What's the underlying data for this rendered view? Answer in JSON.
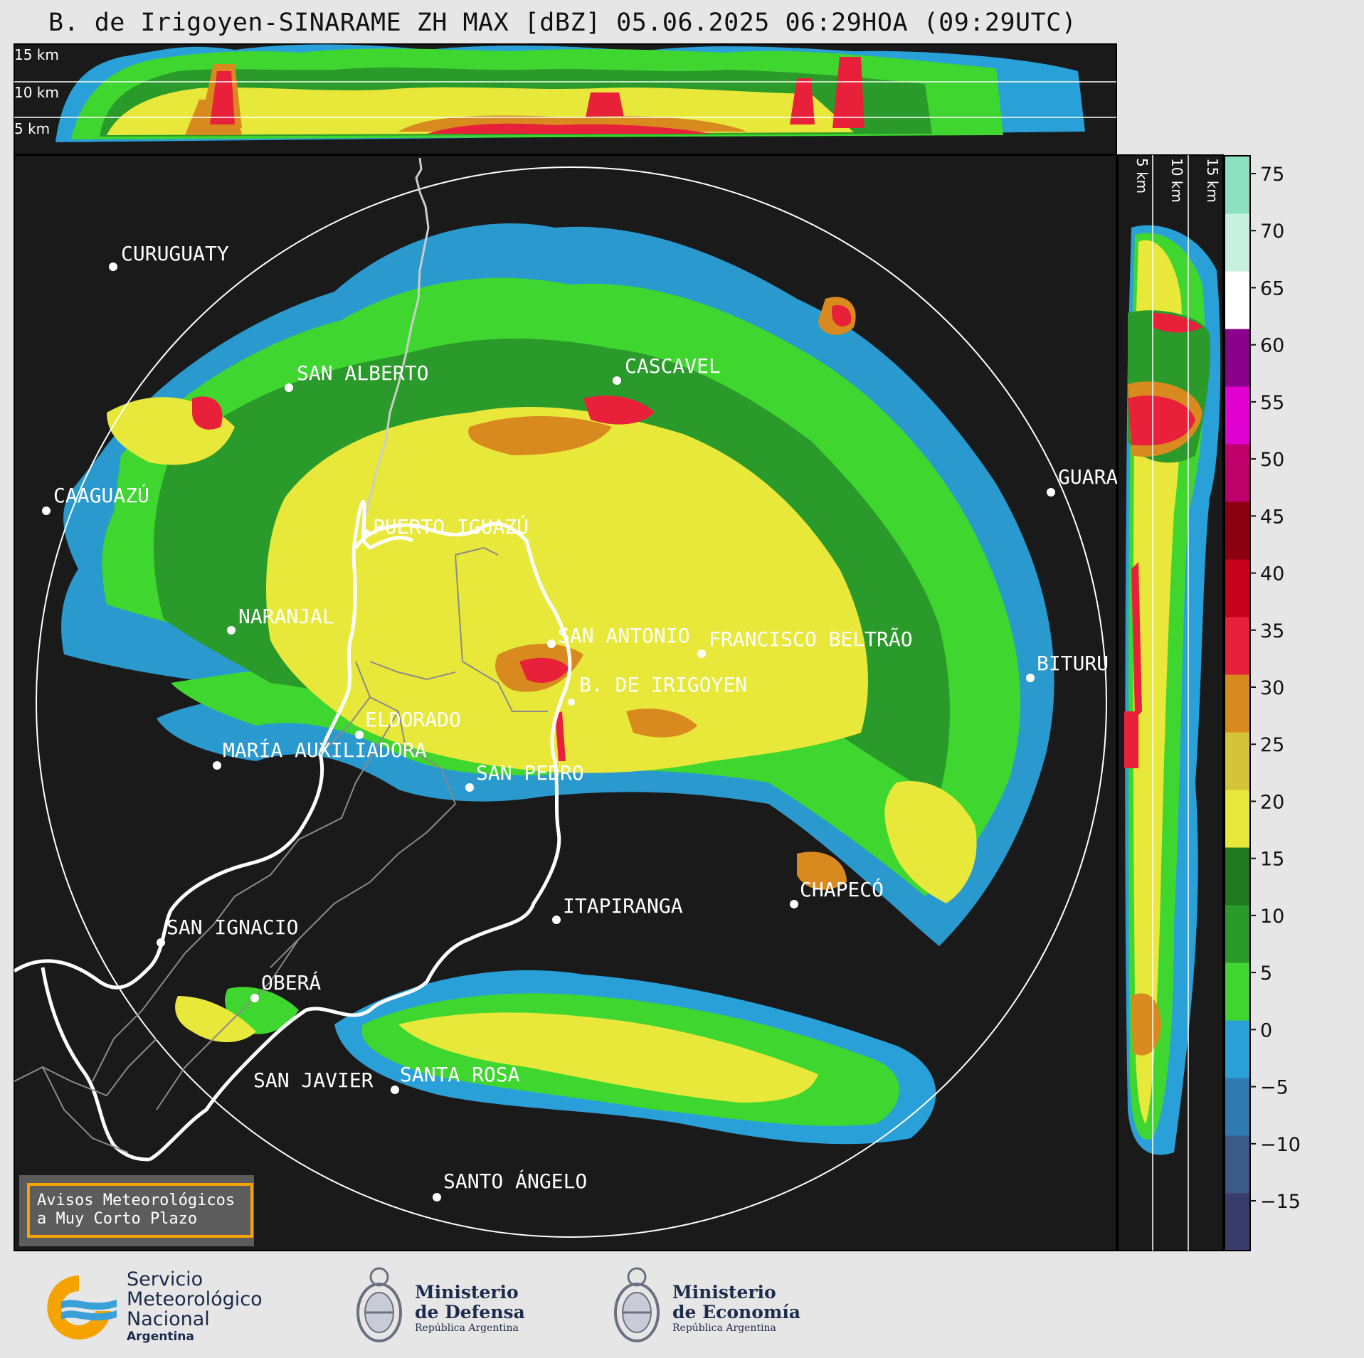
{
  "title": "B. de Irigoyen-SINARAME ZH MAX [dBZ] 05.06.2025 06:29HOA (09:29UTC)",
  "top_profile": {
    "altitude_labels": [
      "15 km",
      "10 km",
      "5 km"
    ]
  },
  "side_profile": {
    "altitude_labels": [
      "5 km",
      "10 km",
      "15 km"
    ]
  },
  "colorbar": {
    "unit": "dBZ",
    "ticks": [
      "75",
      "70",
      "65",
      "60",
      "55",
      "50",
      "45",
      "40",
      "35",
      "30",
      "25",
      "20",
      "15",
      "10",
      "5",
      "0",
      "−5",
      "−10",
      "−15"
    ]
  },
  "cities": [
    {
      "name": "CURUGUATY"
    },
    {
      "name": "SAN ALBERTO"
    },
    {
      "name": "CASCAVEL"
    },
    {
      "name": "CAAGUAZÚ"
    },
    {
      "name": "GUARA"
    },
    {
      "name": "PUERTO IGUAZÚ"
    },
    {
      "name": "NARANJAL"
    },
    {
      "name": "SAN ANTONIO"
    },
    {
      "name": "FRANCISCO BELTRÃO"
    },
    {
      "name": "B. DE IRIGOYEN"
    },
    {
      "name": "BITURU"
    },
    {
      "name": "ELDORADO"
    },
    {
      "name": "MARÍA AUXILIADORA"
    },
    {
      "name": "SAN PEDRO"
    },
    {
      "name": "CHAPECÓ"
    },
    {
      "name": "ITAPIRANGA"
    },
    {
      "name": "SAN IGNACIO"
    },
    {
      "name": "OBERÁ"
    },
    {
      "name": "SAN JAVIER"
    },
    {
      "name": "SANTA ROSA"
    },
    {
      "name": "SANTO ÁNGELO"
    }
  ],
  "notice": {
    "line1": "Avisos Meteorológicos",
    "line2": "a Muy Corto Plazo"
  },
  "logos": {
    "smn": {
      "line1": "Servicio",
      "line2": "Meteorológico",
      "line3": "Nacional",
      "line4": "Argentina"
    },
    "defensa": {
      "line1": "Ministerio",
      "line2": "de Defensa",
      "line3": "República Argentina"
    },
    "economia": {
      "line1": "Ministerio",
      "line2": "de Economía",
      "line3": "República Argentina"
    }
  },
  "colors": {
    "background": "#e6e6e6",
    "panel": "#1a1a1a",
    "scale": [
      "#3a3d6b",
      "#3b5a8a",
      "#2f7ab0",
      "#2aa0d8",
      "#3fd62f",
      "#2a9a2a",
      "#1f7a1f",
      "#e8e83a",
      "#d4c43a",
      "#d88a1e",
      "#e8203a",
      "#c8001a",
      "#8a0010",
      "#c0006a",
      "#e000d0",
      "#8a008a",
      "#ffffff",
      "#c8f0e0",
      "#8ae0c0"
    ]
  }
}
